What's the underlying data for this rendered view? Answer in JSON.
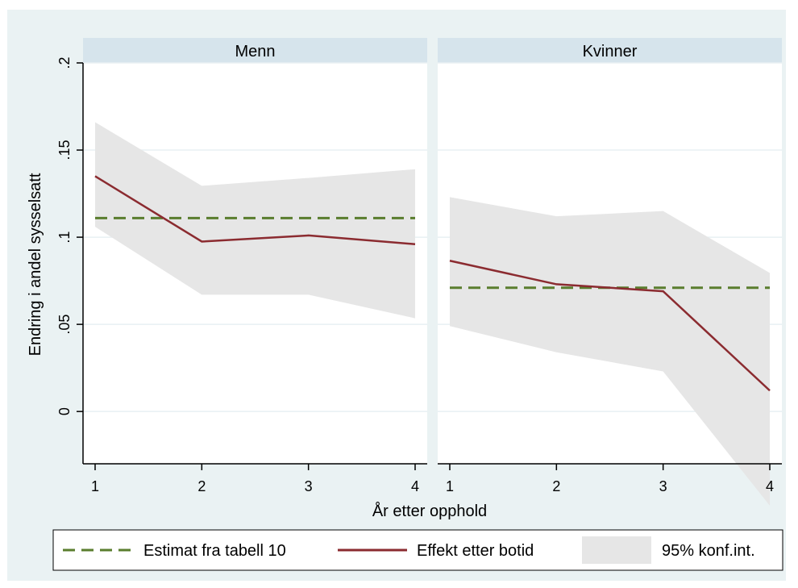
{
  "chart_data": {
    "type": "line",
    "ylabel": "Endring i andel sysselsatt",
    "xlabel": "År etter opphold",
    "x": [
      1,
      2,
      3,
      4
    ],
    "x_ticks": [
      "1",
      "2",
      "3",
      "4"
    ],
    "y_ticks": [
      {
        "value": 0,
        "label": "0"
      },
      {
        "value": 0.05,
        "label": ".05"
      },
      {
        "value": 0.1,
        "label": ".1"
      },
      {
        "value": 0.15,
        "label": ".15"
      },
      {
        "value": 0.2,
        "label": ".2"
      }
    ],
    "ylim": [
      -0.03,
      0.2
    ],
    "grid": true,
    "legend_position": "bottom",
    "legend": {
      "estimate": "Estimat fra tabell 10",
      "effect": "Effekt etter botid",
      "ci": "95% konf.int."
    },
    "colors": {
      "estimate": "#5a7d2e",
      "effect": "#8b2b30",
      "ci": "#e6e6e6",
      "strip": "#d6e4ec",
      "outer_bg": "#eaf2f3",
      "grid": "#e8f0f3"
    },
    "panels": [
      {
        "title": "Menn",
        "estimate": 0.111,
        "effect": [
          0.135,
          0.0975,
          0.101,
          0.096
        ],
        "ci_lower": [
          0.106,
          0.067,
          0.067,
          0.0535
        ],
        "ci_upper": [
          0.166,
          0.1295,
          0.134,
          0.139
        ]
      },
      {
        "title": "Kvinner",
        "estimate": 0.071,
        "effect": [
          0.0865,
          0.073,
          0.069,
          0.012
        ],
        "ci_lower": [
          0.049,
          0.034,
          0.023,
          -0.054
        ],
        "ci_upper": [
          0.123,
          0.112,
          0.115,
          0.0795
        ]
      }
    ]
  }
}
